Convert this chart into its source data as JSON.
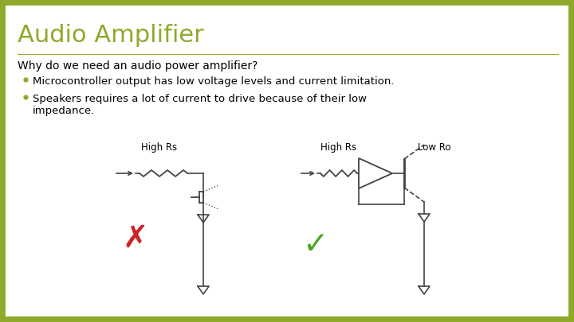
{
  "title": "Audio Amplifier",
  "title_color": "#8faa2b",
  "background_color": "#ffffff",
  "border_color": "#8faa2b",
  "border_lw": 10,
  "question": "Why do we need an audio power amplifier?",
  "bullets": [
    "Microcontroller output has low voltage levels and current limitation.",
    "Speakers requires a lot of current to drive because of their low\nimpedance."
  ],
  "bullet_color": "#8faa2b",
  "label_high_rs_1": "High Rs",
  "label_high_rs_2": "High Rs",
  "label_low_ro": "Low Ro",
  "circuit_color": "#444444",
  "cross_color": "#cc2222",
  "check_color": "#44aa22",
  "font_family": "DejaVu Sans"
}
